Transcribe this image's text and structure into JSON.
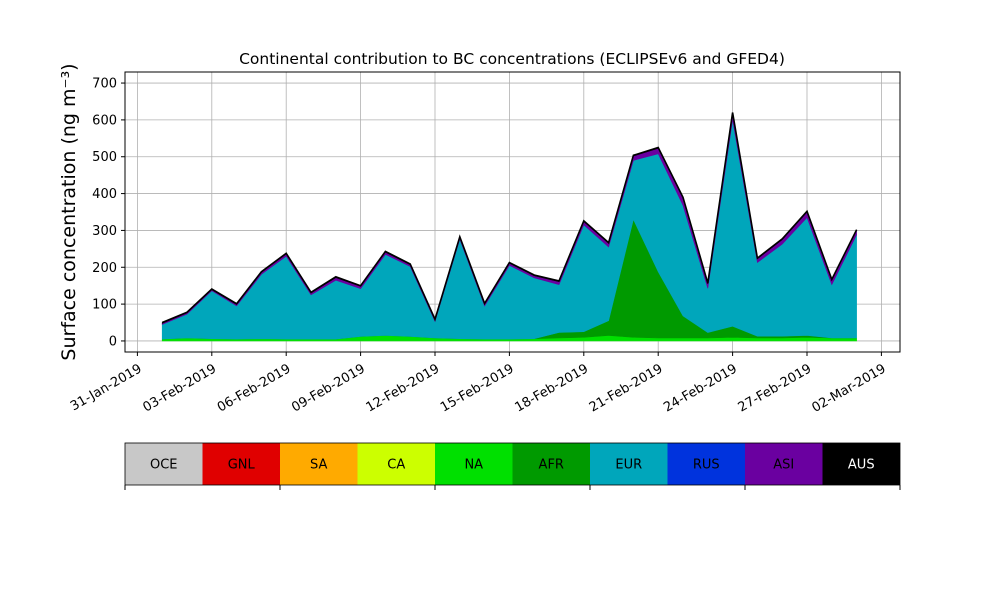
{
  "chart_data": {
    "type": "area",
    "title": "Continental contribution to BC concentrations (ECLIPSEv6 and GFED4)",
    "ylabel": "Surface concentration (ng m⁻³)",
    "xlabel": "",
    "ylim": [
      -30,
      730
    ],
    "xlim": [
      "2019-01-30T12:00",
      "2019-03-02T18:00"
    ],
    "yticks": [
      0,
      100,
      200,
      300,
      400,
      500,
      600,
      700
    ],
    "xticks": [
      {
        "date": "2019-01-31",
        "label": "31-Jan-2019"
      },
      {
        "date": "2019-02-03",
        "label": "03-Feb-2019"
      },
      {
        "date": "2019-02-06",
        "label": "06-Feb-2019"
      },
      {
        "date": "2019-02-09",
        "label": "09-Feb-2019"
      },
      {
        "date": "2019-02-12",
        "label": "12-Feb-2019"
      },
      {
        "date": "2019-02-15",
        "label": "15-Feb-2019"
      },
      {
        "date": "2019-02-18",
        "label": "18-Feb-2019"
      },
      {
        "date": "2019-02-21",
        "label": "21-Feb-2019"
      },
      {
        "date": "2019-02-24",
        "label": "24-Feb-2019"
      },
      {
        "date": "2019-02-27",
        "label": "27-Feb-2019"
      },
      {
        "date": "2019-03-02",
        "label": "02-Mar-2019"
      }
    ],
    "grid": true,
    "legend_position": "bottom",
    "legend": [
      {
        "name": "OCE",
        "color": "#c8c8c8",
        "text_color": "#000000"
      },
      {
        "name": "GNL",
        "color": "#e00000",
        "text_color": "#000000"
      },
      {
        "name": "SA",
        "color": "#ffaa00",
        "text_color": "#000000"
      },
      {
        "name": "CA",
        "color": "#ccff00",
        "text_color": "#000000"
      },
      {
        "name": "NA",
        "color": "#00e000",
        "text_color": "#000000"
      },
      {
        "name": "AFR",
        "color": "#009a00",
        "text_color": "#000000"
      },
      {
        "name": "EUR",
        "color": "#00a6bb",
        "text_color": "#000000"
      },
      {
        "name": "RUS",
        "color": "#0033dd",
        "text_color": "#000000"
      },
      {
        "name": "ASI",
        "color": "#6a00a0",
        "text_color": "#000000"
      },
      {
        "name": "AUS",
        "color": "#000000",
        "text_color": "#ffffff"
      }
    ],
    "x": [
      "2019-02-01",
      "2019-02-02",
      "2019-02-03",
      "2019-02-04",
      "2019-02-05",
      "2019-02-06",
      "2019-02-07",
      "2019-02-08",
      "2019-02-09",
      "2019-02-10",
      "2019-02-11",
      "2019-02-12",
      "2019-02-13",
      "2019-02-14",
      "2019-02-15",
      "2019-02-16",
      "2019-02-17",
      "2019-02-18",
      "2019-02-19",
      "2019-02-20",
      "2019-02-21",
      "2019-02-22",
      "2019-02-23",
      "2019-02-24",
      "2019-02-25",
      "2019-02-26",
      "2019-02-27",
      "2019-02-28",
      "2019-03-01"
    ],
    "series": [
      {
        "name": "NA",
        "color": "#00e000",
        "values": [
          5,
          8,
          6,
          5,
          6,
          5,
          5,
          5,
          12,
          15,
          12,
          8,
          6,
          5,
          5,
          6,
          8,
          10,
          15,
          10,
          8,
          8,
          8,
          10,
          8,
          8,
          10,
          8,
          8
        ]
      },
      {
        "name": "AFR",
        "color": "#009a00",
        "values": [
          0,
          0,
          0,
          0,
          0,
          0,
          0,
          0,
          0,
          0,
          0,
          0,
          0,
          0,
          0,
          0,
          15,
          15,
          40,
          320,
          180,
          60,
          15,
          30,
          5,
          5,
          5,
          0,
          0
        ]
      },
      {
        "name": "EUR",
        "color": "#00a6bb",
        "values": [
          40,
          65,
          130,
          90,
          175,
          225,
          120,
          160,
          130,
          220,
          190,
          45,
          270,
          90,
          200,
          165,
          130,
          290,
          200,
          160,
          320,
          300,
          120,
          560,
          200,
          250,
          320,
          145,
          280
        ]
      },
      {
        "name": "ASI",
        "color": "#6a00a0",
        "values": [
          3,
          3,
          3,
          4,
          5,
          6,
          5,
          7,
          6,
          6,
          5,
          4,
          5,
          5,
          6,
          6,
          8,
          9,
          10,
          12,
          15,
          20,
          12,
          18,
          10,
          12,
          15,
          12,
          12
        ]
      },
      {
        "name": "AUS",
        "color": "#000000",
        "values": [
          2,
          2,
          2,
          2,
          2,
          2,
          2,
          2,
          2,
          2,
          2,
          2,
          2,
          2,
          2,
          2,
          2,
          2,
          2,
          2,
          2,
          2,
          2,
          2,
          2,
          2,
          2,
          2,
          2
        ]
      }
    ]
  }
}
